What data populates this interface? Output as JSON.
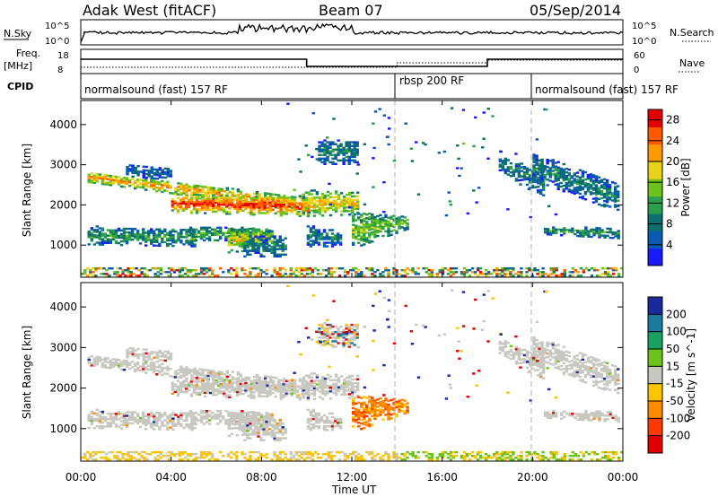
{
  "header": {
    "radar": "Adak West (fitACF)",
    "beam": "Beam 07",
    "date": "05/Sep/2014"
  },
  "summary": {
    "nsky_label": "N.Sky",
    "nsearch_label": "N.Search",
    "noise_ticks_left": [
      "10^5",
      "10^0"
    ],
    "noise_ticks_right": [
      "10^5",
      "10^0"
    ],
    "freq_label": "Freq.",
    "freq_unit": "[MHz]",
    "freq_ticks": [
      "18",
      "8"
    ],
    "nave_label": "Nave",
    "nave_ticks": [
      "60",
      "0"
    ],
    "cpid_label": "CPID",
    "programs": [
      {
        "name": "normalsound (fast) 157 RF",
        "start_h": 0,
        "end_h": 14
      },
      {
        "name": "rbsp 200 RF",
        "start_h": 14,
        "end_h": 20
      },
      {
        "name": "normalsound (fast) 157 RF",
        "start_h": 20,
        "end_h": 24
      }
    ]
  },
  "chart_data": [
    {
      "type": "heatmap",
      "name": "power",
      "ylabel": "Slant Range [km]",
      "y_ticks": [
        "1000",
        "2000",
        "3000",
        "4000"
      ],
      "colorbar_label": "Power [dB]",
      "colorbar_ticks": [
        "4",
        "8",
        "12",
        "16",
        "20",
        "24",
        "28"
      ],
      "colorbar_range": [
        0,
        30
      ],
      "colors": [
        "#1a1aff",
        "#0a5ab4",
        "#0c6e6e",
        "#2aa04a",
        "#6cc41a",
        "#e8d21a",
        "#ff9a00",
        "#ff5a00",
        "#e00000"
      ],
      "ylim": [
        200,
        4600
      ]
    },
    {
      "type": "heatmap",
      "name": "velocity",
      "ylabel": "Slant Range [km]",
      "y_ticks": [
        "1000",
        "2000",
        "3000",
        "4000"
      ],
      "colorbar_label": "Velocity [m s^-1]",
      "colorbar_ticks": [
        "200",
        "100",
        "50",
        "15",
        "-15",
        "-50",
        "-100",
        "-200"
      ],
      "colors": [
        "#1a2a9a",
        "#1a7aa0",
        "#1aa060",
        "#6cc41a",
        "#c8c8c0",
        "#ffc400",
        "#ff8a00",
        "#ff3a00",
        "#e00000"
      ],
      "ylim": [
        200,
        4600
      ]
    }
  ],
  "xaxis": {
    "label": "Time UT",
    "ticks": [
      "00:00",
      "04:00",
      "08:00",
      "12:00",
      "16:00",
      "20:00",
      "00:00"
    ],
    "xlim_hours": [
      0,
      24
    ]
  }
}
